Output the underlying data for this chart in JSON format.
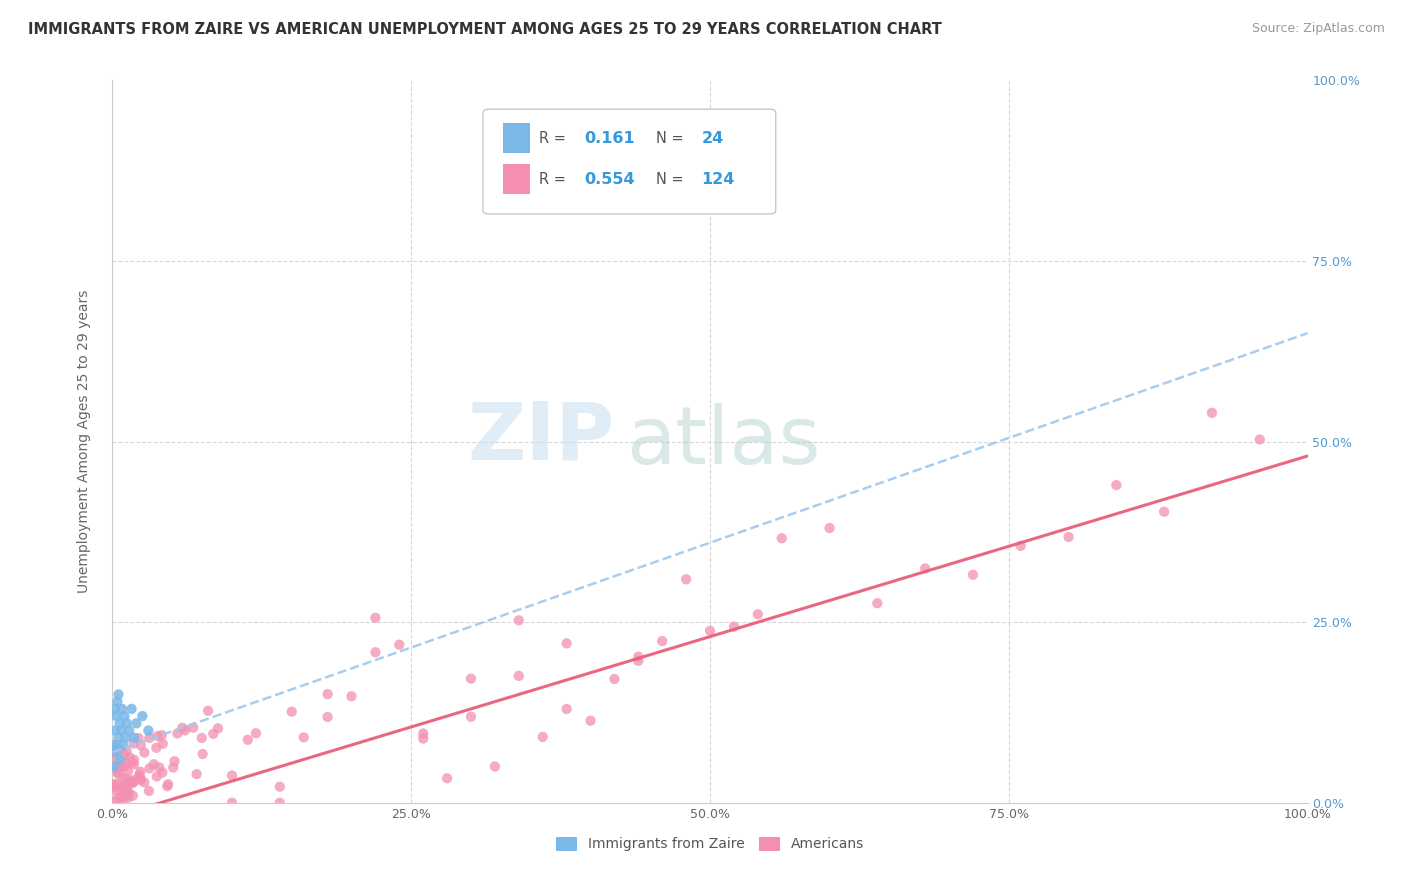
{
  "title": "IMMIGRANTS FROM ZAIRE VS AMERICAN UNEMPLOYMENT AMONG AGES 25 TO 29 YEARS CORRELATION CHART",
  "source": "Source: ZipAtlas.com",
  "ylabel": "Unemployment Among Ages 25 to 29 years",
  "legend_bottom_labels": [
    "Immigrants from Zaire",
    "Americans"
  ],
  "blue_R": 0.161,
  "blue_N": 24,
  "pink_R": 0.554,
  "pink_N": 124,
  "x_ticks": [
    0.0,
    0.25,
    0.5,
    0.75,
    1.0
  ],
  "x_tick_labels": [
    "0.0%",
    "25.0%",
    "50.0%",
    "75.0%",
    "100.0%"
  ],
  "y_ticks": [
    0.0,
    0.25,
    0.5,
    0.75,
    1.0
  ],
  "y_tick_labels_right": [
    "0.0%",
    "25.0%",
    "50.0%",
    "75.0%",
    "100.0%"
  ],
  "background_color": "#ffffff",
  "blue_color": "#7ab8e8",
  "pink_color": "#f48fb1",
  "blue_line_color": "#a0c8f0",
  "pink_line_color": "#e8607a",
  "watermark_zip": "ZIP",
  "watermark_atlas": "atlas",
  "grid_color": "#d8d8d8"
}
